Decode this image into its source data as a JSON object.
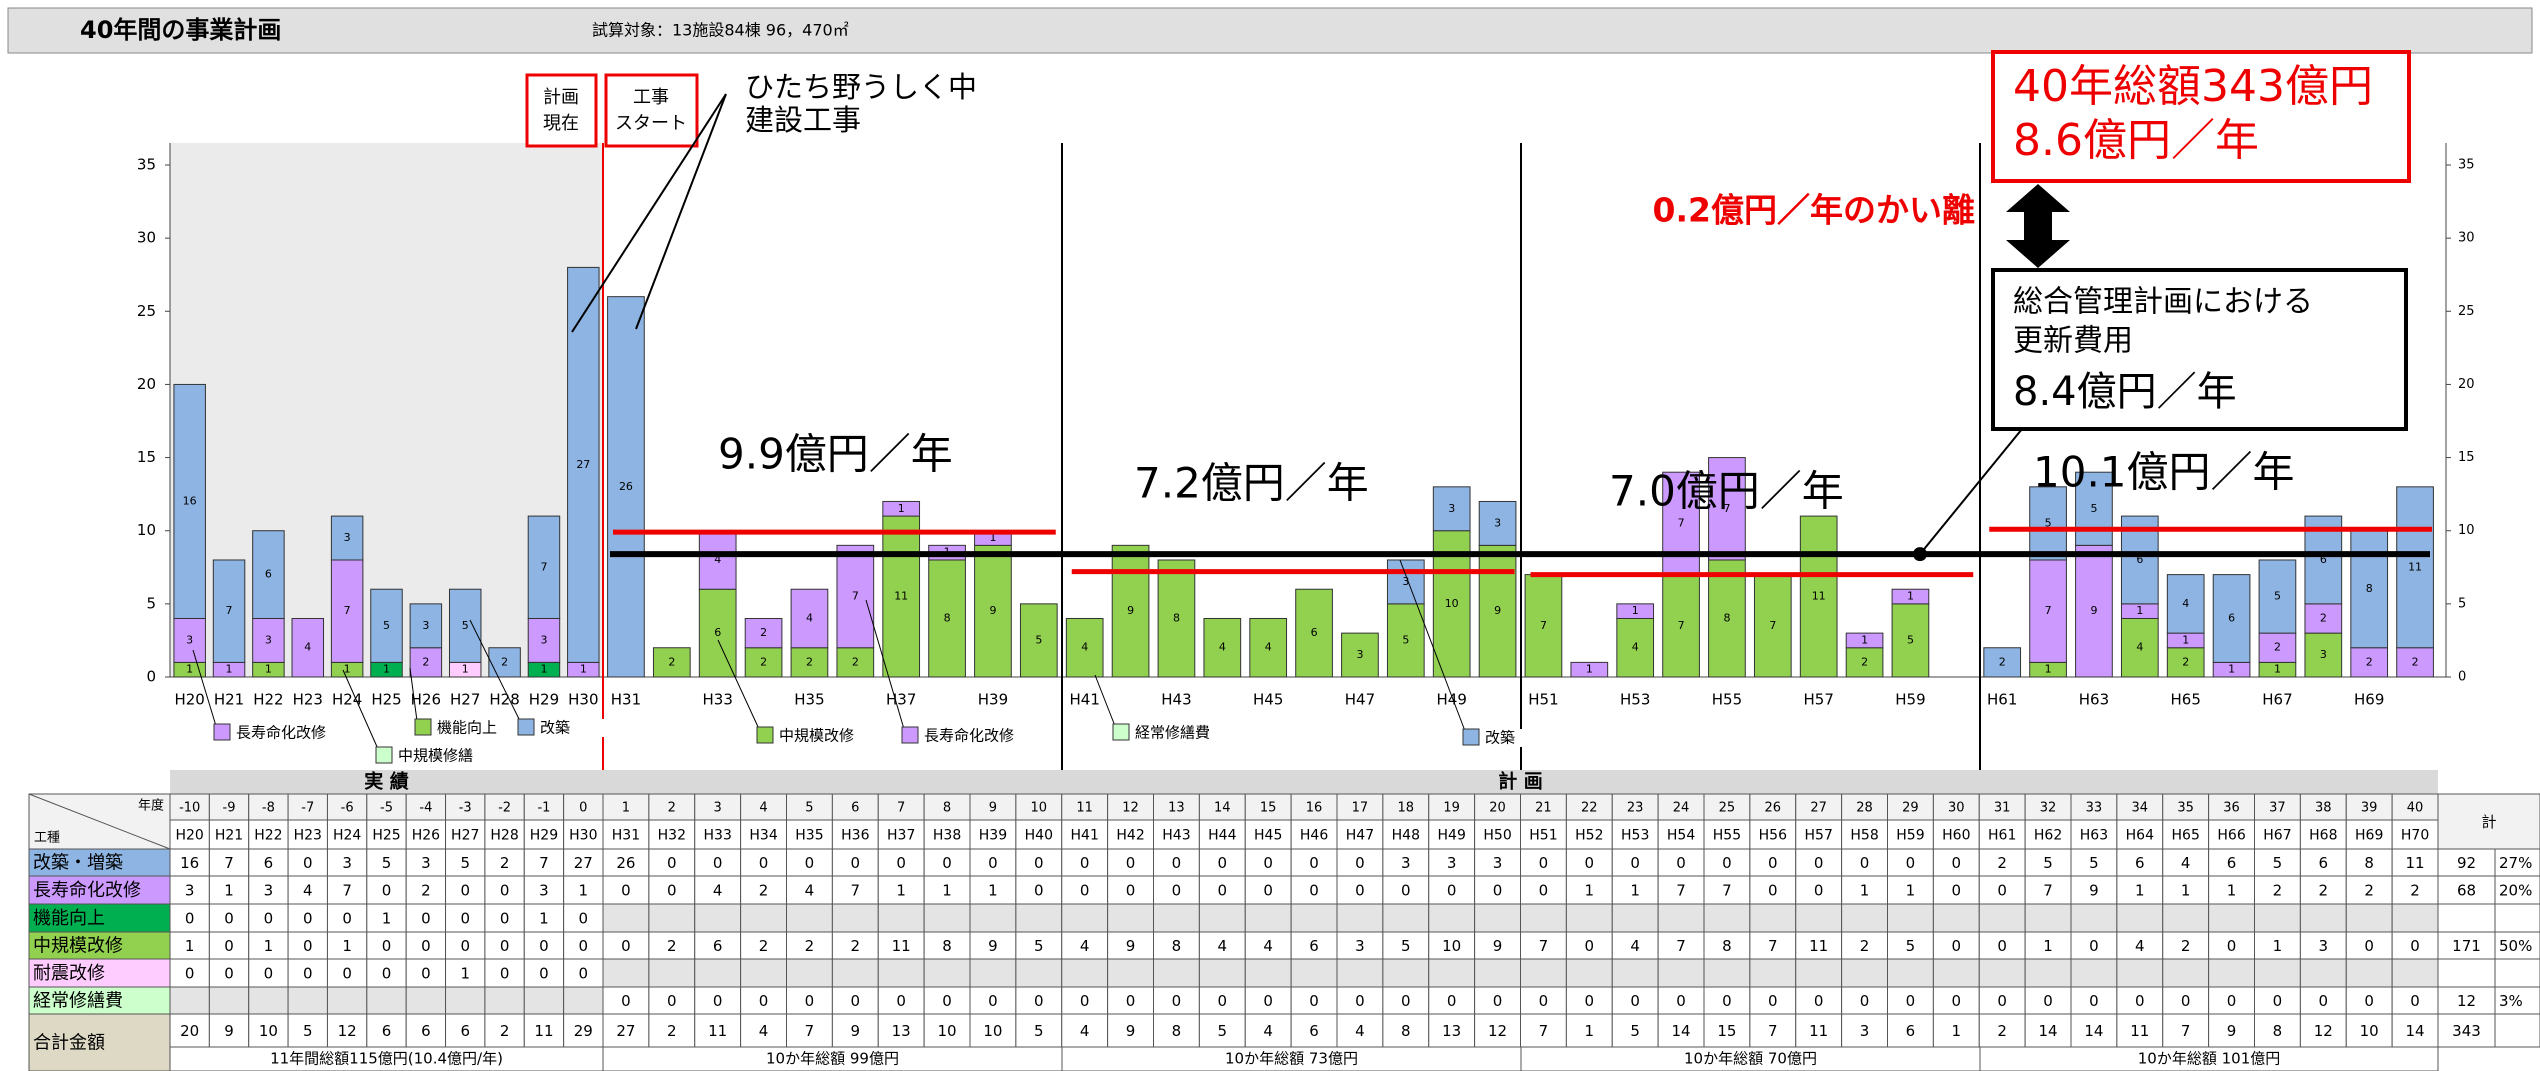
{
  "header": {
    "title": "40年間の事業計画",
    "subtitle": "試算対象：13施設84棟 96，470㎡"
  },
  "chart_data": {
    "type": "bar",
    "stacked": true,
    "ylim": [
      0,
      35
    ],
    "yticks": [
      0,
      5,
      10,
      15,
      20,
      25,
      30,
      35
    ],
    "categories": [
      "H20",
      "H21",
      "H22",
      "H23",
      "H24",
      "H25",
      "H26",
      "H27",
      "H28",
      "H29",
      "H30",
      "H31",
      "H32",
      "H33",
      "H34",
      "H35",
      "H36",
      "H37",
      "H38",
      "H39",
      "H40",
      "H41",
      "H42",
      "H43",
      "H44",
      "H45",
      "H46",
      "H47",
      "H48",
      "H49",
      "H50",
      "H51",
      "H52",
      "H53",
      "H54",
      "H55",
      "H56",
      "H57",
      "H58",
      "H59",
      "H60",
      "H61",
      "H62",
      "H63",
      "H64",
      "H65",
      "H66",
      "H67",
      "H68",
      "H69",
      "H70"
    ],
    "offsets": [
      -10,
      -9,
      -8,
      -7,
      -6,
      -5,
      -4,
      -3,
      -2,
      -1,
      0,
      1,
      2,
      3,
      4,
      5,
      6,
      7,
      8,
      9,
      10,
      11,
      12,
      13,
      14,
      15,
      16,
      17,
      18,
      19,
      20,
      21,
      22,
      23,
      24,
      25,
      26,
      27,
      28,
      29,
      30,
      31,
      32,
      33,
      34,
      35,
      36,
      37,
      38,
      39,
      40
    ],
    "series": [
      {
        "name": "改築・増築",
        "color": "#8db4e2",
        "values": [
          16,
          7,
          6,
          0,
          3,
          5,
          3,
          5,
          2,
          7,
          27,
          26,
          0,
          0,
          0,
          0,
          0,
          0,
          0,
          0,
          0,
          0,
          0,
          0,
          0,
          0,
          0,
          0,
          3,
          3,
          3,
          0,
          0,
          0,
          0,
          0,
          0,
          0,
          0,
          0,
          0,
          2,
          5,
          5,
          6,
          4,
          6,
          5,
          6,
          8,
          11
        ],
        "total": 92,
        "share": "27%"
      },
      {
        "name": "長寿命化改修",
        "color": "#cc99ff",
        "values": [
          3,
          1,
          3,
          4,
          7,
          0,
          2,
          0,
          0,
          3,
          1,
          0,
          0,
          4,
          2,
          4,
          7,
          1,
          1,
          1,
          0,
          0,
          0,
          0,
          0,
          0,
          0,
          0,
          0,
          0,
          0,
          0,
          1,
          1,
          7,
          7,
          0,
          0,
          1,
          1,
          0,
          0,
          7,
          9,
          1,
          1,
          1,
          2,
          2,
          2,
          2
        ],
        "total": 68,
        "share": "20%"
      },
      {
        "name": "機能向上",
        "color": "#00b050",
        "values": [
          0,
          0,
          0,
          0,
          0,
          1,
          0,
          0,
          0,
          1,
          0,
          null,
          null,
          null,
          null,
          null,
          null,
          null,
          null,
          null,
          null,
          null,
          null,
          null,
          null,
          null,
          null,
          null,
          null,
          null,
          null,
          null,
          null,
          null,
          null,
          null,
          null,
          null,
          null,
          null,
          null,
          null,
          null,
          null,
          null,
          null,
          null,
          null,
          null,
          null,
          null
        ]
      },
      {
        "name": "中規模改修",
        "color": "#92d050",
        "values": [
          1,
          0,
          1,
          0,
          1,
          0,
          0,
          0,
          0,
          0,
          0,
          0,
          2,
          6,
          2,
          2,
          2,
          11,
          8,
          9,
          5,
          4,
          9,
          8,
          4,
          4,
          6,
          3,
          5,
          10,
          9,
          7,
          0,
          4,
          7,
          8,
          7,
          11,
          2,
          5,
          0,
          0,
          1,
          0,
          4,
          2,
          0,
          1,
          3,
          0,
          0
        ],
        "total": 171,
        "share": "50%"
      },
      {
        "name": "耐震改修",
        "color": "#ffccff",
        "values": [
          0,
          0,
          0,
          0,
          0,
          0,
          0,
          1,
          0,
          0,
          0,
          null,
          null,
          null,
          null,
          null,
          null,
          null,
          null,
          null,
          null,
          null,
          null,
          null,
          null,
          null,
          null,
          null,
          null,
          null,
          null,
          null,
          null,
          null,
          null,
          null,
          null,
          null,
          null,
          null,
          null,
          null,
          null,
          null,
          null,
          null,
          null,
          null,
          null,
          null,
          null
        ]
      },
      {
        "name": "経常修繕費",
        "color": "#ccffcc",
        "values": [
          null,
          null,
          null,
          null,
          null,
          null,
          null,
          null,
          null,
          null,
          null,
          0,
          0,
          0,
          0,
          0,
          0,
          0,
          0,
          0,
          0,
          0,
          0,
          0,
          0,
          0,
          0,
          0,
          0,
          0,
          0,
          0,
          0,
          0,
          0,
          0,
          0,
          0,
          0,
          0,
          0,
          0,
          0,
          0,
          0,
          0,
          0,
          0,
          0,
          0,
          0
        ],
        "total": 12,
        "share": "3%"
      }
    ],
    "sum_row": {
      "name": "合計金額",
      "values": [
        20,
        9,
        10,
        5,
        12,
        6,
        6,
        6,
        2,
        11,
        29,
        27,
        2,
        11,
        4,
        7,
        9,
        13,
        10,
        10,
        5,
        4,
        9,
        8,
        5,
        4,
        6,
        4,
        8,
        13,
        12,
        7,
        1,
        5,
        14,
        15,
        7,
        11,
        3,
        6,
        1,
        2,
        14,
        14,
        11,
        7,
        9,
        8,
        12,
        10,
        14
      ],
      "total": 343
    },
    "table_labels": {
      "actual": "実 績",
      "plan": "計 画",
      "year": "年度",
      "kind": "工種",
      "total": "計"
    },
    "periods": [
      {
        "footer": "11年間総額115億円(10.4億円/年)"
      },
      {
        "footer": "10か年総額  99億円",
        "avg_label": "9.9億円／年",
        "avg": 9.9
      },
      {
        "footer": "10か年総額  73億円",
        "avg_label": "7.2億円／年",
        "avg": 7.2
      },
      {
        "footer": "10か年総額  70億円",
        "avg_label": "7.0億円／年",
        "avg": 7.0
      },
      {
        "footer": "10か年総額  101億円",
        "avg_label": "10.1億円／年",
        "avg": 10.1
      }
    ],
    "callouts": [
      {
        "label": "長寿命化改修",
        "color": "#cc99ff"
      },
      {
        "label": "中規模修繕",
        "color": "#ccffcc"
      },
      {
        "label": "機能向上",
        "color": "#92d050"
      },
      {
        "label": "改築",
        "color": "#8db4e2"
      },
      {
        "label": "中規模改修",
        "color": "#92d050"
      },
      {
        "label": "長寿命化改修",
        "color": "#cc99ff"
      },
      {
        "label": "経常修繕費",
        "color": "#ccffcc"
      },
      {
        "label": "改築",
        "color": "#8db4e2"
      }
    ],
    "notes": {
      "plan_now": [
        "計画",
        "現在"
      ],
      "start": [
        "工事",
        "スタート"
      ],
      "school": [
        "ひたち野うしく中",
        "建設工事"
      ],
      "gap": "0.2億円／年のかい離",
      "total_box": [
        "40年総額343億円",
        "8.6億円／年"
      ],
      "plan_box": [
        "総合管理計画における",
        "更新費用",
        "8.4億円／年"
      ],
      "plan_level": 8.4
    }
  }
}
